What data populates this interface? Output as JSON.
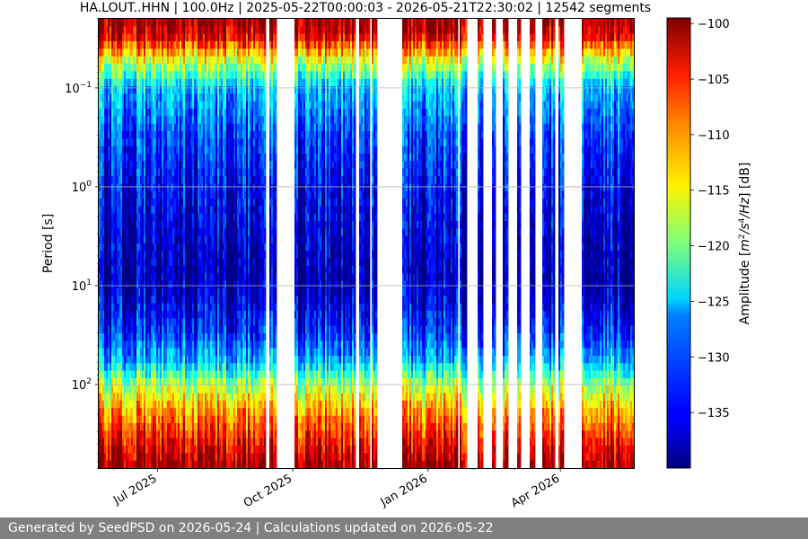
{
  "chart_data": {
    "type": "heatmap",
    "title": "HA.LOUT..HHN | 100.0Hz | 2025-05-22T00:00:03 - 2026-05-21T22:30:02 | 12542 segments",
    "ylabel": "Period [s]",
    "y_scale": "log",
    "y_inverted": true,
    "ylim": [
      0.02,
      700
    ],
    "y_ticks": [
      {
        "value": 0.1,
        "base": "10",
        "exp": "−1"
      },
      {
        "value": 1,
        "base": "10",
        "exp": "0"
      },
      {
        "value": 10,
        "base": "10",
        "exp": "1"
      },
      {
        "value": 100,
        "base": "10",
        "exp": "2"
      }
    ],
    "xlim": [
      "2025-05-22",
      "2026-05-21"
    ],
    "x_ticks": [
      {
        "date": "2025-07-01",
        "label": "Jul 2025"
      },
      {
        "date": "2025-10-01",
        "label": "Oct 2025"
      },
      {
        "date": "2026-01-01",
        "label": "Jan 2026"
      },
      {
        "date": "2026-04-01",
        "label": "Apr 2026"
      }
    ],
    "grid": true,
    "colormap": "jet",
    "colorbar": {
      "label_prefix": "Amplitude [",
      "label_unit_m": "m",
      "label_exp_2": "2",
      "label_unit_s": "/s",
      "label_exp_4": "4",
      "label_unit_hz": "/Hz",
      "label_suffix": "] [dB]",
      "range": [
        -140,
        -99.5
      ],
      "ticks": [
        "−100",
        "−105",
        "−110",
        "−115",
        "−120",
        "−125",
        "−130",
        "−135"
      ],
      "tick_values": [
        -100,
        -105,
        -110,
        -115,
        -120,
        -125,
        -130,
        -135
      ]
    },
    "gaps": [
      [
        "2025-09-12",
        "2025-09-15"
      ],
      [
        "2025-09-20",
        "2025-10-02"
      ],
      [
        "2025-11-13",
        "2025-11-15"
      ],
      [
        "2025-11-22",
        "2025-11-24"
      ],
      [
        "2025-11-27",
        "2025-12-15"
      ],
      [
        "2026-01-21",
        "2026-01-23"
      ],
      [
        "2026-01-27",
        "2026-02-04"
      ],
      [
        "2026-02-07",
        "2026-02-13"
      ],
      [
        "2026-02-16",
        "2026-02-21"
      ],
      [
        "2026-02-24",
        "2026-03-02"
      ],
      [
        "2026-03-05",
        "2026-03-11"
      ],
      [
        "2026-03-15",
        "2026-03-20"
      ],
      [
        "2026-03-28",
        "2026-03-31"
      ],
      [
        "2026-04-03",
        "2026-04-16"
      ]
    ],
    "spectrum_profile": {
      "periods": [
        0.02,
        0.03,
        0.05,
        0.1,
        0.3,
        1,
        4,
        8,
        15,
        30,
        60,
        100,
        200,
        400,
        700
      ],
      "db": [
        -100,
        -103,
        -115,
        -127,
        -132,
        -135,
        -137,
        -138,
        -136,
        -133,
        -127,
        -118,
        -110,
        -104,
        -100
      ]
    }
  },
  "footer": {
    "text": "Generated by SeedPSD on 2026-05-24 | Calculations updated on 2026-05-22"
  }
}
